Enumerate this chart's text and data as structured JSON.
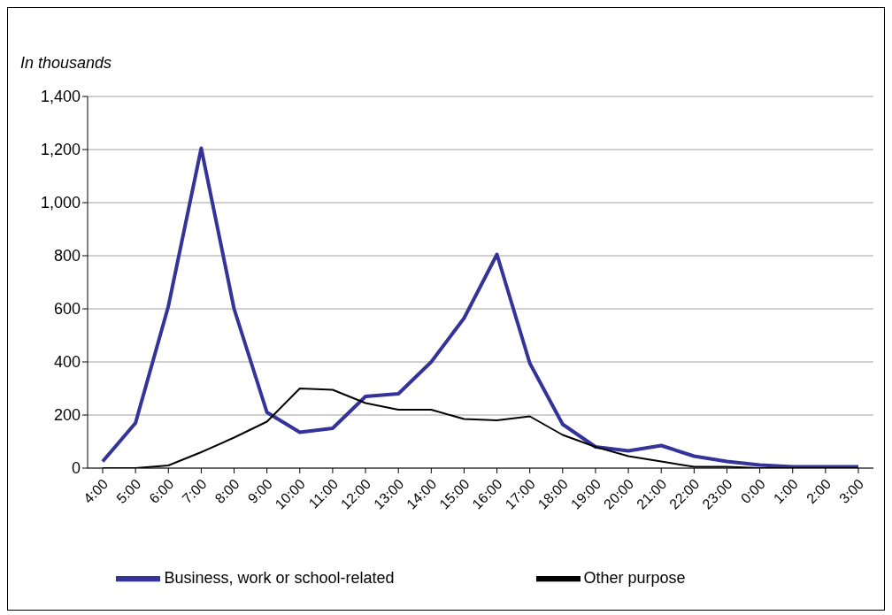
{
  "chart_data": {
    "type": "line",
    "ylabel": "In thousands",
    "categories": [
      "4:00",
      "5:00",
      "6:00",
      "7:00",
      "8:00",
      "9:00",
      "10:00",
      "11:00",
      "12:00",
      "13:00",
      "14:00",
      "15:00",
      "16:00",
      "17:00",
      "18:00",
      "19:00",
      "20:00",
      "21:00",
      "22:00",
      "23:00",
      "0:00",
      "1:00",
      "2:00",
      "3:00"
    ],
    "series": [
      {
        "name": "Business, work or school-related",
        "color": "#333399",
        "values": [
          25,
          170,
          610,
          1205,
          600,
          210,
          135,
          150,
          270,
          280,
          400,
          565,
          805,
          395,
          165,
          80,
          65,
          85,
          45,
          25,
          12,
          5,
          5,
          5
        ]
      },
      {
        "name": "Other purpose",
        "color": "#000000",
        "values": [
          0,
          0,
          10,
          60,
          115,
          175,
          300,
          295,
          245,
          220,
          220,
          185,
          180,
          195,
          125,
          80,
          45,
          25,
          5,
          5,
          0,
          0,
          0,
          0
        ]
      }
    ],
    "ylim": [
      0,
      1400
    ],
    "yticks": [
      0,
      {
        "value": 200,
        "label": "200"
      },
      {
        "value": 400,
        "label": "400"
      },
      {
        "value": 600,
        "label": "600"
      },
      {
        "value": 800,
        "label": "800"
      },
      {
        "value": 1000,
        "label": "1,000"
      },
      {
        "value": 1200,
        "label": "1,200"
      },
      {
        "value": 1400,
        "label": "1,400"
      }
    ],
    "grid": "y",
    "legend": "bottom",
    "marker": "none",
    "line_style": "solid"
  }
}
